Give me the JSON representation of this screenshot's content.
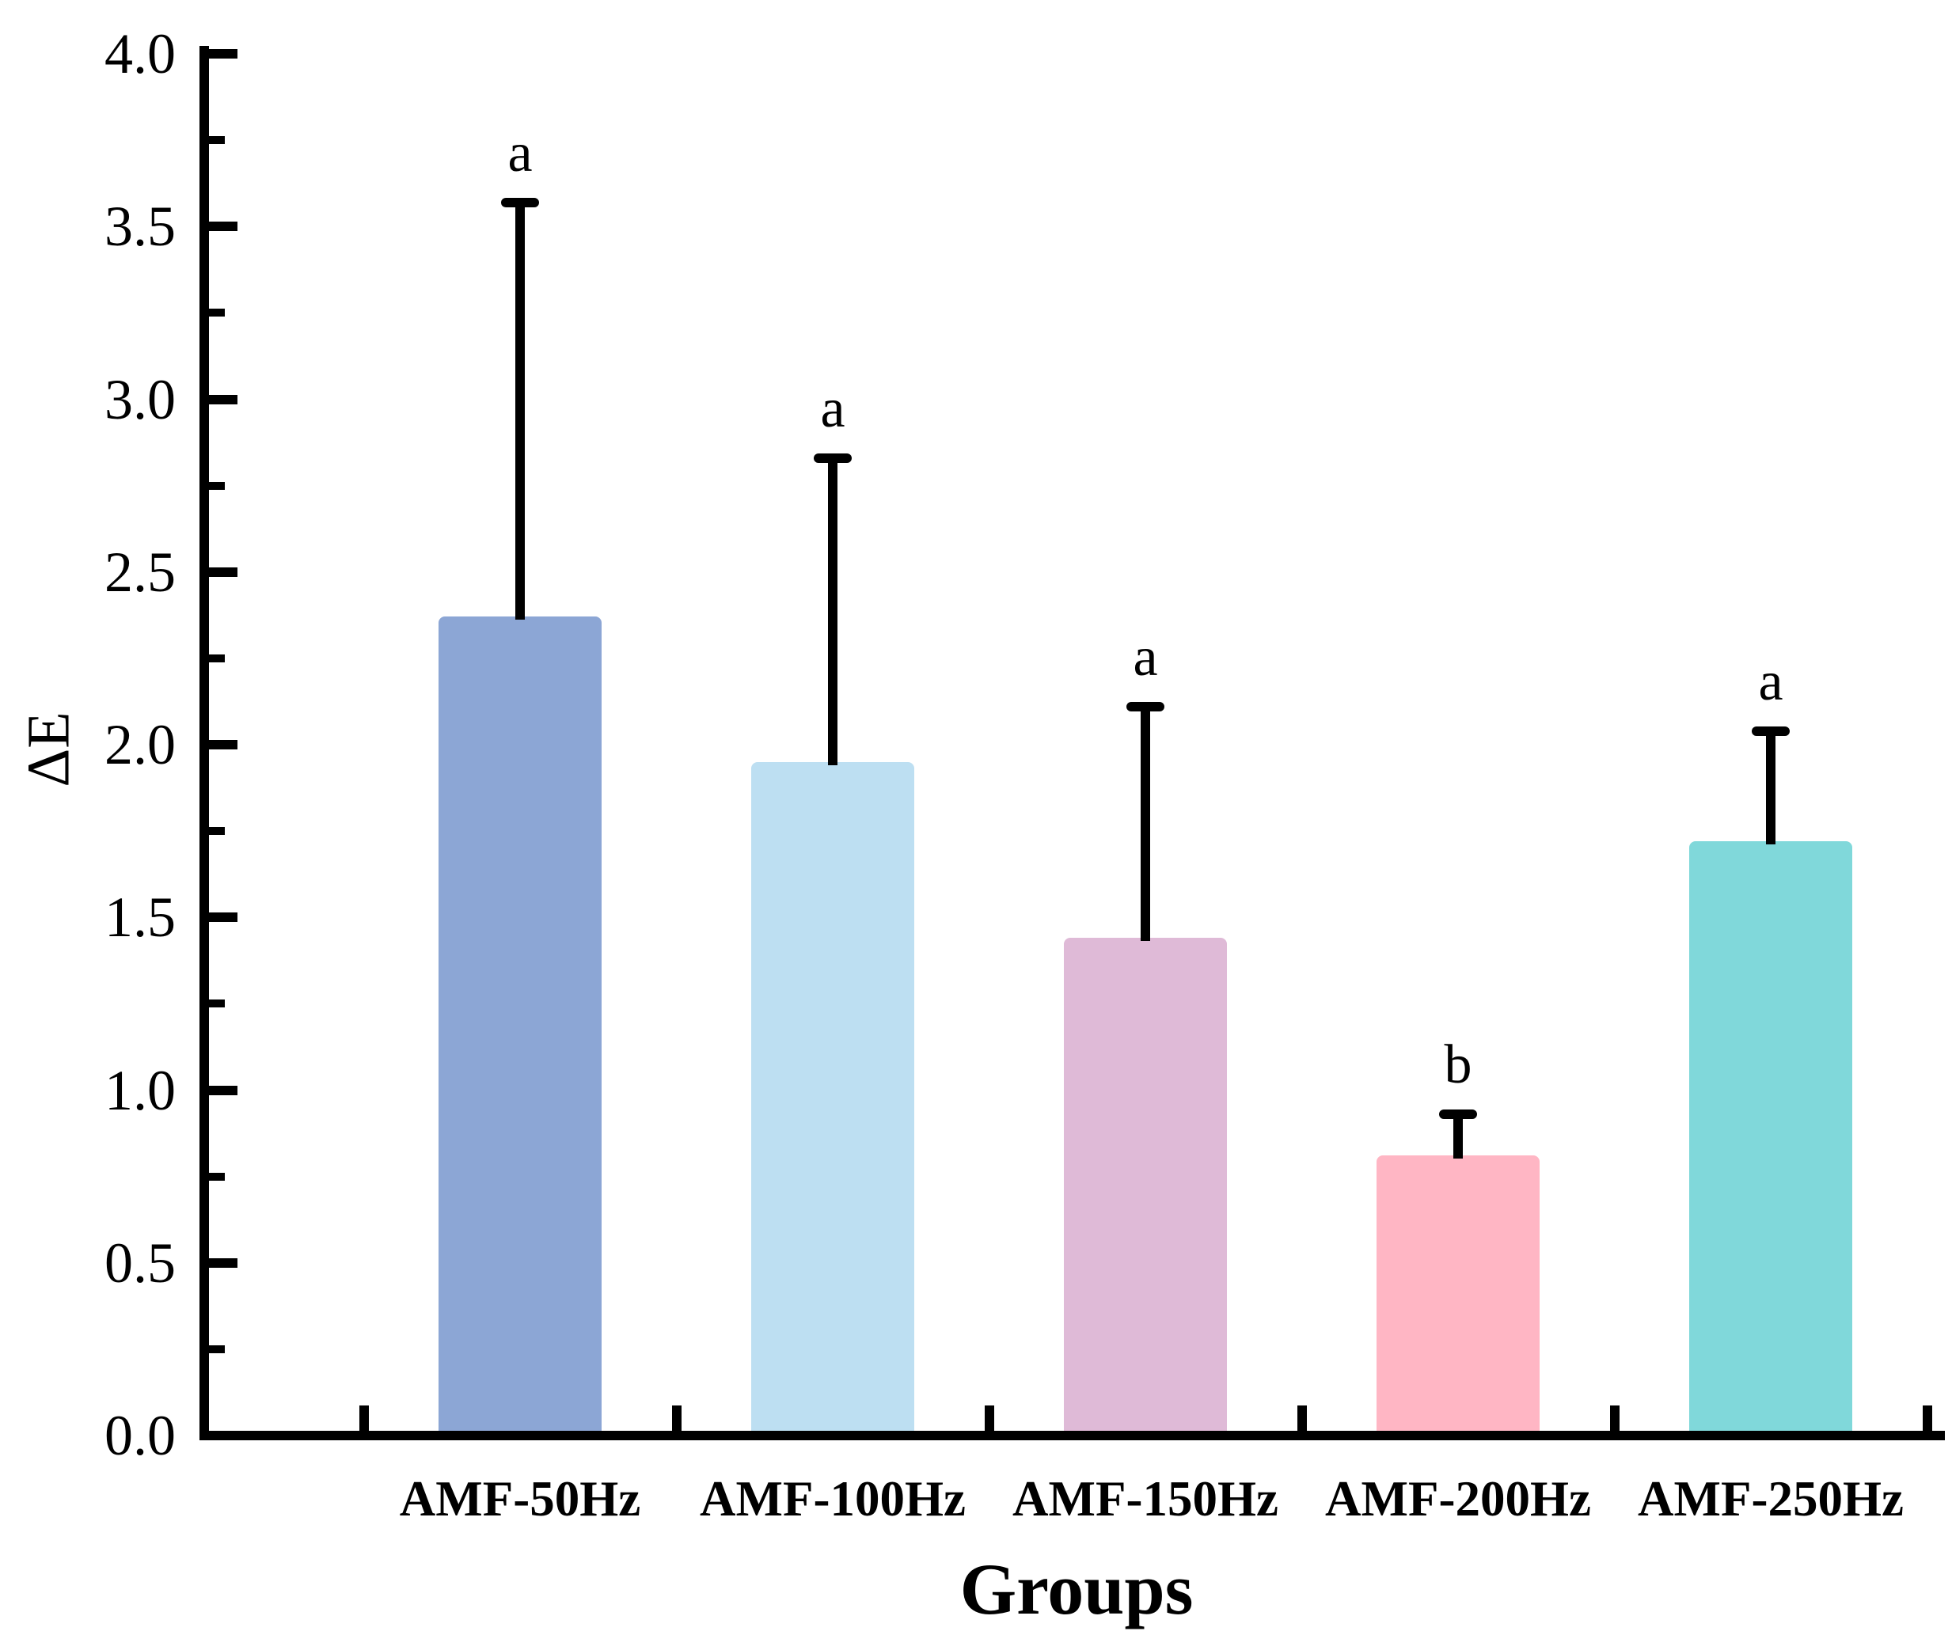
{
  "figure": {
    "background": "#ffffff",
    "axis_color": "#000000",
    "text_color": "#000000"
  },
  "chart_data": {
    "type": "bar",
    "title": "",
    "xlabel": "Groups",
    "ylabel": "ΔE",
    "ylim": [
      0.0,
      4.0
    ],
    "y_major_step": 0.5,
    "y_minor_step": 0.25,
    "grid": false,
    "legend": "none",
    "y_tick_labels": [
      "0.0",
      "0.5",
      "1.0",
      "1.5",
      "2.0",
      "2.5",
      "3.0",
      "3.5",
      "4.0"
    ],
    "categories": [
      "AMF-50Hz",
      "AMF-100Hz",
      "AMF-150Hz",
      "AMF-200Hz",
      "AMF-250Hz"
    ],
    "values": [
      2.37,
      1.95,
      1.44,
      0.81,
      1.72
    ],
    "error_plus": [
      1.2,
      0.88,
      0.67,
      0.12,
      0.32
    ],
    "error_bar_tops": [
      3.57,
      2.83,
      2.11,
      0.93,
      2.04
    ],
    "significance_letters": [
      "a",
      "a",
      "a",
      "b",
      "a"
    ],
    "bar_colors": [
      "#8CA6D5",
      "#BDDFF2",
      "#DFBAD7",
      "#FFB6C4",
      "#80D8DA"
    ]
  }
}
